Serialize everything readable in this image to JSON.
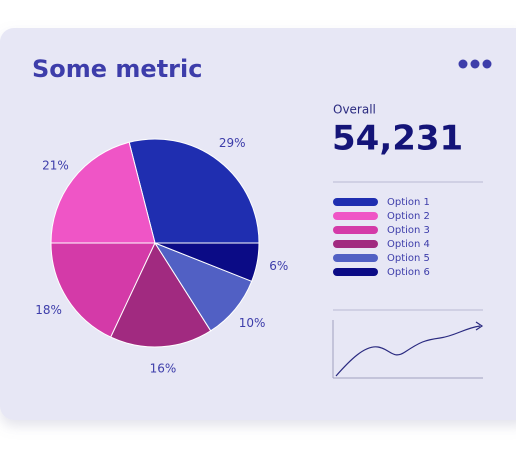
{
  "card": {
    "title": "Some metric",
    "summary_label": "Overall",
    "summary_value": "54,231"
  },
  "chart_data": {
    "type": "pie",
    "categories": [
      "Option 1",
      "Option 2",
      "Option 3",
      "Option 4",
      "Option 5",
      "Option 6"
    ],
    "values": [
      29,
      21,
      18,
      16,
      10,
      6
    ],
    "value_labels": [
      "29%",
      "21%",
      "18%",
      "16%",
      "10%",
      "6%"
    ],
    "colors": [
      "#1f2eb0",
      "#ef55c6",
      "#d43aa8",
      "#a12a80",
      "#5160c4",
      "#0b0b86"
    ]
  }
}
